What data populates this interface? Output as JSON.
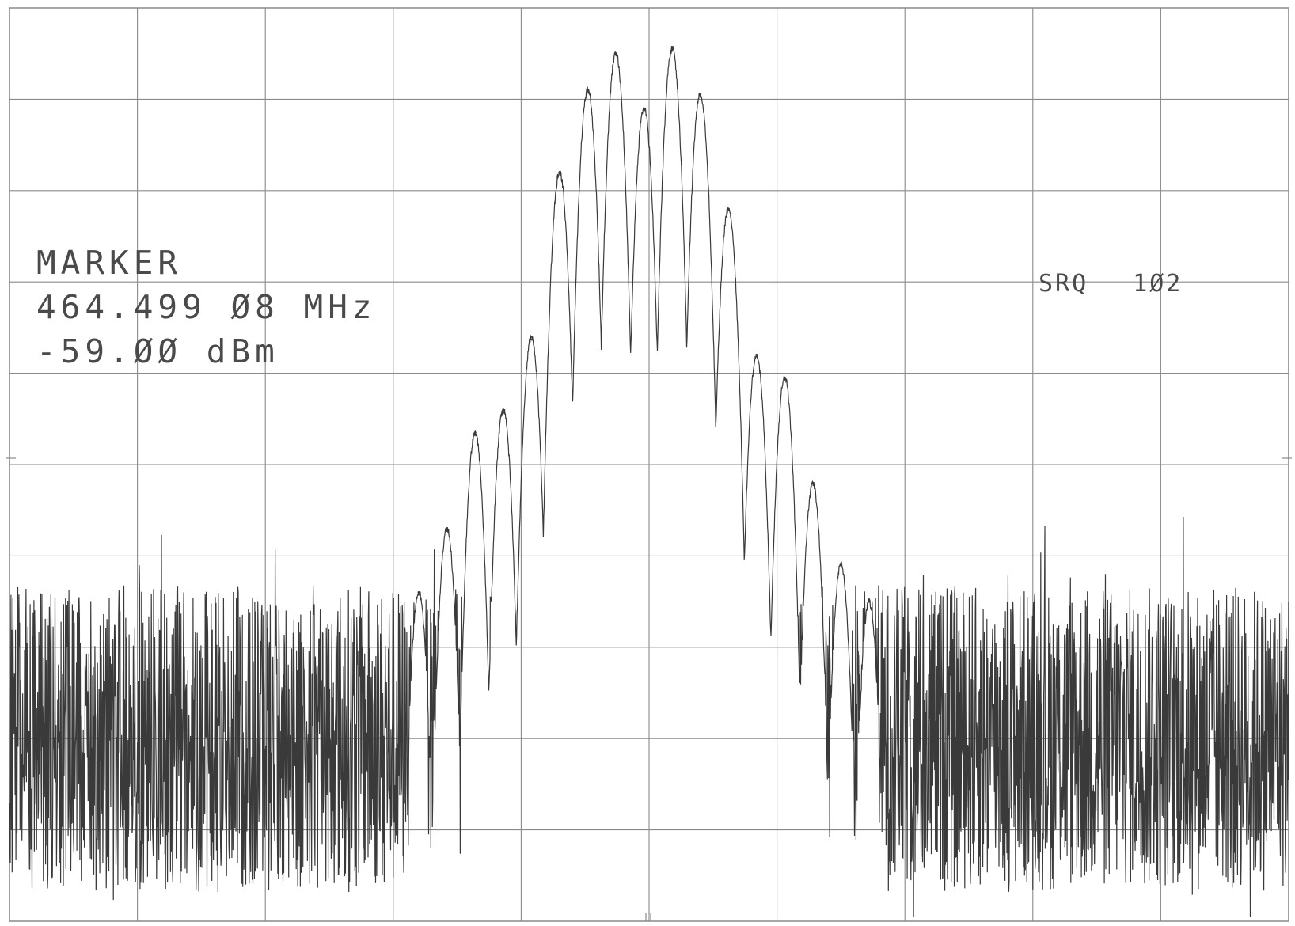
{
  "marker": {
    "heading": "MARKER",
    "frequency": "464.499 Ø8 MHz",
    "amplitude": "-59.ØØ dBm"
  },
  "status": {
    "srq_label": "SRQ",
    "srq_code": "1Ø2"
  },
  "colors": {
    "trace": "#3a3a3a",
    "grid": "#8a8a8a",
    "text": "#4a4a4a",
    "background": "#ffffff"
  },
  "chart_data": {
    "type": "line",
    "title": "",
    "xlabel": "",
    "ylabel": "",
    "grid": true,
    "grid_divisions": {
      "x": 10,
      "y": 10
    },
    "xlim": [
      0,
      10
    ],
    "ylim": [
      0,
      10
    ],
    "noise_floor": {
      "mean": 2.0,
      "spread": 2.4
    },
    "series": [
      {
        "x": [
          3.2,
          3.42,
          3.64,
          3.86,
          4.08,
          4.3,
          4.52,
          4.74,
          4.96,
          5.18,
          5.4,
          5.62,
          5.84,
          6.06,
          6.28,
          6.5,
          6.72
        ],
        "values": [
          3.6,
          4.3,
          5.35,
          5.6,
          6.4,
          8.2,
          9.1,
          9.5,
          8.9,
          9.55,
          9.05,
          7.8,
          6.2,
          5.95,
          4.8,
          3.9,
          3.5
        ]
      }
    ]
  }
}
